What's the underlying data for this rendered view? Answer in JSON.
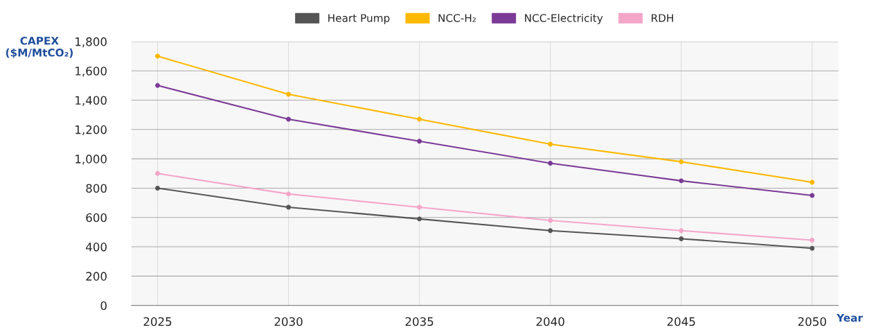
{
  "chart_data": {
    "type": "line",
    "xlabel": "Year",
    "ylabel": "CAPEX\n($M/MtCO₂)",
    "x": [
      2025,
      2030,
      2035,
      2040,
      2045,
      2050
    ],
    "series": [
      {
        "name": "Heart Pump",
        "color": "#555555",
        "values": [
          800,
          670,
          590,
          510,
          455,
          390
        ]
      },
      {
        "name": "NCC-H₂",
        "color": "#ffb800",
        "values": [
          1700,
          1440,
          1270,
          1100,
          980,
          840
        ]
      },
      {
        "name": "NCC-Electricity",
        "color": "#7b3a96",
        "values": [
          1500,
          1270,
          1120,
          970,
          850,
          750
        ]
      },
      {
        "name": "RDH",
        "color": "#f4a6c8",
        "values": [
          900,
          760,
          670,
          580,
          510,
          445
        ]
      }
    ],
    "xlim": [
      2024,
      2051
    ],
    "xticks": [
      2025,
      2030,
      2035,
      2040,
      2045,
      2050
    ],
    "ylim": [
      0,
      1800
    ],
    "yticks": [
      0,
      200,
      400,
      600,
      800,
      {
        "value": 1000,
        "label": "1,000"
      },
      {
        "value": 1200,
        "label": "1,200"
      },
      {
        "value": 1400,
        "label": "1,400"
      },
      {
        "value": 1600,
        "label": "1,600"
      },
      {
        "value": 1800,
        "label": "1,800"
      }
    ],
    "grid": true,
    "legend": "top",
    "marker": "circle",
    "line_style": "solid"
  }
}
